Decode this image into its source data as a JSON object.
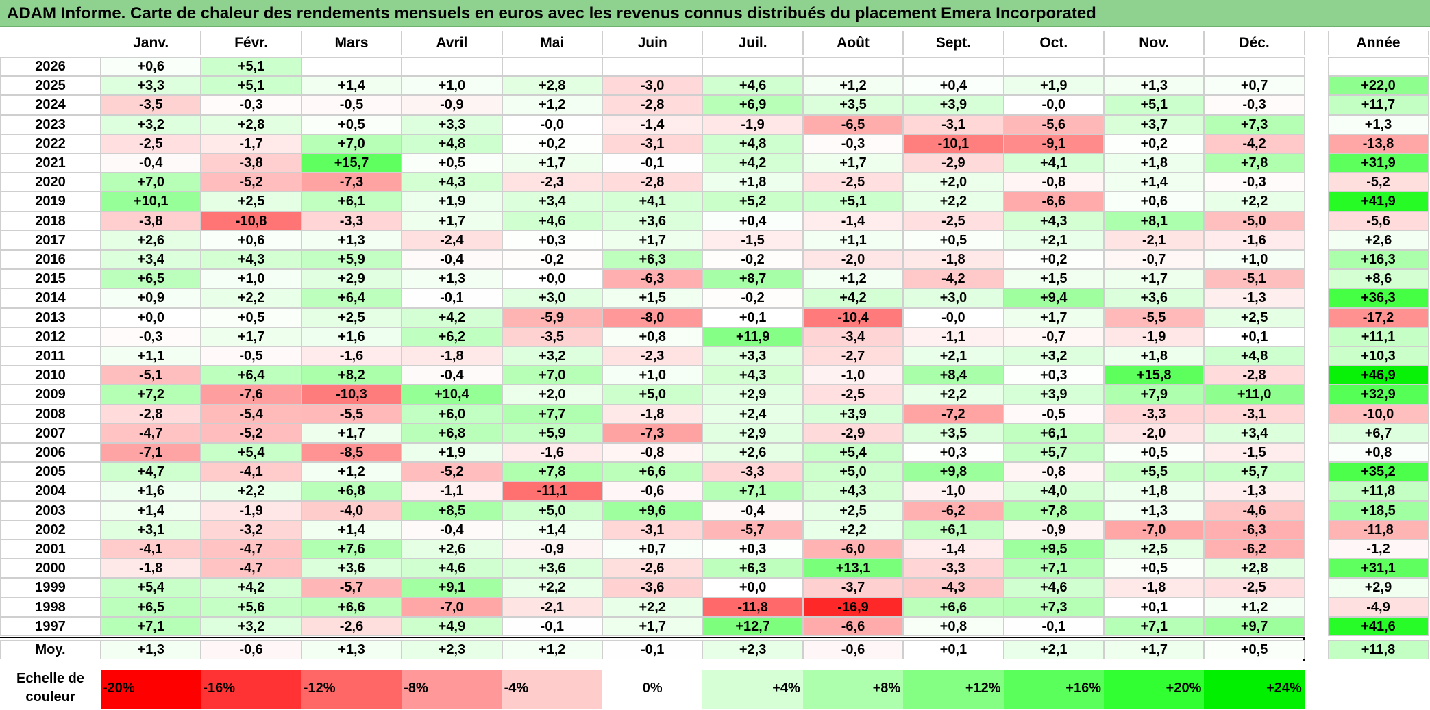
{
  "title": "ADAM Informe. Carte de chaleur des rendements mensuels en euros avec les revenus connus distribués du placement Emera Incorporated",
  "chart_data": {
    "type": "heatmap",
    "title": "ADAM Informe. Carte de chaleur des rendements mensuels en euros avec les revenus connus distribués du placement Emera Incorporated",
    "columns": [
      "Janv.",
      "Févr.",
      "Mars",
      "Avril",
      "Mai",
      "Juin",
      "Juil.",
      "Août",
      "Sept.",
      "Oct.",
      "Nov.",
      "Déc."
    ],
    "year_column_label": "Année",
    "rows": [
      {
        "year": "2026",
        "values": [
          "+0,6",
          "+5,1",
          "",
          "",
          "",
          "",
          "",
          "",
          "",
          "",
          "",
          ""
        ],
        "annual": ""
      },
      {
        "year": "2025",
        "values": [
          "+3,3",
          "+5,1",
          "+1,4",
          "+1,0",
          "+2,8",
          "-3,0",
          "+4,6",
          "+1,2",
          "+0,4",
          "+1,9",
          "+1,3",
          "+0,7"
        ],
        "annual": "+22,0"
      },
      {
        "year": "2024",
        "values": [
          "-3,5",
          "-0,3",
          "-0,5",
          "-0,9",
          "+1,2",
          "-2,8",
          "+6,9",
          "+3,5",
          "+3,9",
          "-0,0",
          "+5,1",
          "-0,3"
        ],
        "annual": "+11,7"
      },
      {
        "year": "2023",
        "values": [
          "+3,2",
          "+2,8",
          "+0,5",
          "+3,3",
          "-0,0",
          "-1,4",
          "-1,9",
          "-6,5",
          "-3,1",
          "-5,6",
          "+3,7",
          "+7,3"
        ],
        "annual": "+1,3"
      },
      {
        "year": "2022",
        "values": [
          "-2,5",
          "-1,7",
          "+7,0",
          "+4,8",
          "+0,2",
          "-3,1",
          "+4,8",
          "-0,3",
          "-10,1",
          "-9,1",
          "+0,2",
          "-4,2"
        ],
        "annual": "-13,8"
      },
      {
        "year": "2021",
        "values": [
          "-0,4",
          "-3,8",
          "+15,7",
          "+0,5",
          "+1,7",
          "-0,1",
          "+4,2",
          "+1,7",
          "-2,9",
          "+4,1",
          "+1,8",
          "+7,8"
        ],
        "annual": "+31,9"
      },
      {
        "year": "2020",
        "values": [
          "+7,0",
          "-5,2",
          "-7,3",
          "+4,3",
          "-2,3",
          "-2,8",
          "+1,8",
          "-2,5",
          "+2,0",
          "-0,8",
          "+1,4",
          "-0,3"
        ],
        "annual": "-5,2"
      },
      {
        "year": "2019",
        "values": [
          "+10,1",
          "+2,5",
          "+6,1",
          "+1,9",
          "+3,4",
          "+4,1",
          "+5,2",
          "+5,1",
          "+2,2",
          "-6,6",
          "+0,6",
          "+2,2"
        ],
        "annual": "+41,9"
      },
      {
        "year": "2018",
        "values": [
          "-3,8",
          "-10,8",
          "-3,3",
          "+1,7",
          "+4,6",
          "+3,6",
          "+0,4",
          "-1,4",
          "-2,5",
          "+4,3",
          "+8,1",
          "-5,0"
        ],
        "annual": "-5,6"
      },
      {
        "year": "2017",
        "values": [
          "+2,6",
          "+0,6",
          "+1,3",
          "-2,4",
          "+0,3",
          "+1,7",
          "-1,5",
          "+1,1",
          "+0,5",
          "+2,1",
          "-2,1",
          "-1,6"
        ],
        "annual": "+2,6"
      },
      {
        "year": "2016",
        "values": [
          "+3,4",
          "+4,3",
          "+5,9",
          "-0,4",
          "-0,2",
          "+6,3",
          "-0,2",
          "-2,0",
          "-1,8",
          "+0,2",
          "-0,7",
          "+1,0"
        ],
        "annual": "+16,3"
      },
      {
        "year": "2015",
        "values": [
          "+6,5",
          "+1,0",
          "+2,9",
          "+1,3",
          "+0,0",
          "-6,3",
          "+8,7",
          "+1,2",
          "-4,2",
          "+1,5",
          "+1,7",
          "-5,1"
        ],
        "annual": "+8,6"
      },
      {
        "year": "2014",
        "values": [
          "+0,9",
          "+2,2",
          "+6,4",
          "-0,1",
          "+3,0",
          "+1,5",
          "-0,2",
          "+4,2",
          "+3,0",
          "+9,4",
          "+3,6",
          "-1,3"
        ],
        "annual": "+36,3"
      },
      {
        "year": "2013",
        "values": [
          "+0,0",
          "+0,5",
          "+2,5",
          "+4,2",
          "-5,9",
          "-8,0",
          "+0,1",
          "-10,4",
          "-0,0",
          "+1,7",
          "-5,5",
          "+2,5"
        ],
        "annual": "-17,2"
      },
      {
        "year": "2012",
        "values": [
          "-0,3",
          "+1,7",
          "+1,6",
          "+6,2",
          "-3,5",
          "+0,8",
          "+11,9",
          "-3,4",
          "-1,1",
          "-0,7",
          "-1,9",
          "+0,1"
        ],
        "annual": "+11,1"
      },
      {
        "year": "2011",
        "values": [
          "+1,1",
          "-0,5",
          "-1,6",
          "-1,8",
          "+3,2",
          "-2,3",
          "+3,3",
          "-2,7",
          "+2,1",
          "+3,2",
          "+1,8",
          "+4,8"
        ],
        "annual": "+10,3"
      },
      {
        "year": "2010",
        "values": [
          "-5,1",
          "+6,4",
          "+8,2",
          "-0,4",
          "+7,0",
          "+1,0",
          "+4,3",
          "-1,0",
          "+8,4",
          "+0,3",
          "+15,8",
          "-2,8"
        ],
        "annual": "+46,9"
      },
      {
        "year": "2009",
        "values": [
          "+7,2",
          "-7,6",
          "-10,3",
          "+10,4",
          "+2,0",
          "+5,0",
          "+2,9",
          "-2,5",
          "+2,2",
          "+3,9",
          "+7,9",
          "+11,0"
        ],
        "annual": "+32,9"
      },
      {
        "year": "2008",
        "values": [
          "-2,8",
          "-5,4",
          "-5,5",
          "+6,0",
          "+7,7",
          "-1,8",
          "+2,4",
          "+3,9",
          "-7,2",
          "-0,5",
          "-3,3",
          "-3,1"
        ],
        "annual": "-10,0"
      },
      {
        "year": "2007",
        "values": [
          "-4,7",
          "-5,2",
          "+1,7",
          "+6,8",
          "+5,9",
          "-7,3",
          "+2,9",
          "-2,9",
          "+3,5",
          "+6,1",
          "-2,0",
          "+3,4"
        ],
        "annual": "+6,7"
      },
      {
        "year": "2006",
        "values": [
          "-7,1",
          "+5,4",
          "-8,5",
          "+1,9",
          "-1,6",
          "-0,8",
          "+2,6",
          "+5,4",
          "+0,3",
          "+5,7",
          "+0,5",
          "-1,5"
        ],
        "annual": "+0,8"
      },
      {
        "year": "2005",
        "values": [
          "+4,7",
          "-4,1",
          "+1,2",
          "-5,2",
          "+7,8",
          "+6,6",
          "-3,3",
          "+5,0",
          "+9,8",
          "-0,8",
          "+5,5",
          "+5,7"
        ],
        "annual": "+35,2"
      },
      {
        "year": "2004",
        "values": [
          "+1,6",
          "+2,2",
          "+6,8",
          "-1,1",
          "-11,1",
          "-0,6",
          "+7,1",
          "+4,3",
          "-1,0",
          "+4,0",
          "+1,8",
          "-1,3"
        ],
        "annual": "+11,8"
      },
      {
        "year": "2003",
        "values": [
          "+1,4",
          "-1,9",
          "-4,0",
          "+8,5",
          "+5,0",
          "+9,6",
          "-0,4",
          "+2,5",
          "-6,2",
          "+7,8",
          "+1,3",
          "-4,6"
        ],
        "annual": "+18,5"
      },
      {
        "year": "2002",
        "values": [
          "+3,1",
          "-3,2",
          "+1,4",
          "-0,4",
          "+1,4",
          "-3,1",
          "-5,7",
          "+2,2",
          "+6,1",
          "-0,9",
          "-7,0",
          "-6,3"
        ],
        "annual": "-11,8"
      },
      {
        "year": "2001",
        "values": [
          "-4,1",
          "-4,7",
          "+7,6",
          "+2,6",
          "-0,9",
          "+0,7",
          "+0,3",
          "-6,0",
          "-1,4",
          "+9,5",
          "+2,5",
          "-6,2"
        ],
        "annual": "-1,2"
      },
      {
        "year": "2000",
        "values": [
          "-1,8",
          "-4,7",
          "+3,6",
          "+4,6",
          "+3,6",
          "-2,6",
          "+6,3",
          "+13,1",
          "-3,3",
          "+7,1",
          "+0,5",
          "+2,8"
        ],
        "annual": "+31,1"
      },
      {
        "year": "1999",
        "values": [
          "+5,4",
          "+4,2",
          "-5,7",
          "+9,1",
          "+2,2",
          "-3,6",
          "+0,0",
          "-3,7",
          "-4,3",
          "+4,6",
          "-1,8",
          "-2,5"
        ],
        "annual": "+2,9"
      },
      {
        "year": "1998",
        "values": [
          "+6,5",
          "+5,6",
          "+6,6",
          "-7,0",
          "-2,1",
          "+2,2",
          "-11,8",
          "-16,9",
          "+6,6",
          "+7,3",
          "+0,1",
          "+1,2"
        ],
        "annual": "-4,9"
      },
      {
        "year": "1997",
        "values": [
          "+7,1",
          "+3,2",
          "-2,6",
          "+4,9",
          "-0,1",
          "+1,7",
          "+12,7",
          "-6,6",
          "+0,8",
          "-0,1",
          "+7,1",
          "+9,7"
        ],
        "annual": "+41,6"
      }
    ],
    "average": {
      "label": "Moy.",
      "values": [
        "+1,3",
        "-0,6",
        "+1,3",
        "+2,3",
        "+1,2",
        "-0,1",
        "+2,3",
        "-0,6",
        "+0,1",
        "+2,1",
        "+1,7",
        "+0,5"
      ],
      "annual": "+11,8"
    },
    "color_scale": {
      "label": "Echelle de couleur",
      "stops": [
        {
          "label": "-20%",
          "value": -20,
          "color": "#ff0000"
        },
        {
          "label": "-16%",
          "value": -16,
          "color": "#ff3333"
        },
        {
          "label": "-12%",
          "value": -12,
          "color": "#ff6666"
        },
        {
          "label": "-8%",
          "value": -8,
          "color": "#ff9999"
        },
        {
          "label": "-4%",
          "value": -4,
          "color": "#ffcccc"
        },
        {
          "label": "0%",
          "value": 0,
          "color": "#ffffff"
        },
        {
          "label": "+4%",
          "value": 4,
          "color": "#d6ffd6"
        },
        {
          "label": "+8%",
          "value": 8,
          "color": "#adffad"
        },
        {
          "label": "+12%",
          "value": 12,
          "color": "#84ff84"
        },
        {
          "label": "+16%",
          "value": 16,
          "color": "#5bff5b"
        },
        {
          "label": "+20%",
          "value": 20,
          "color": "#32ff32"
        },
        {
          "label": "+24%",
          "value": 24,
          "color": "#00f000"
        }
      ]
    }
  }
}
